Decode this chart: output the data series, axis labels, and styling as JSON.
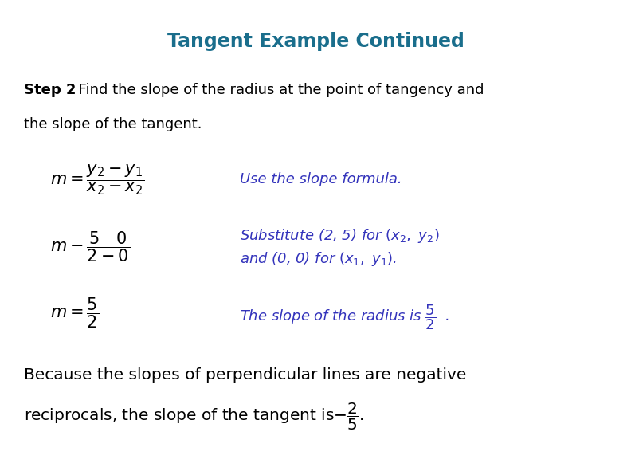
{
  "title": "Tangent Example Continued",
  "title_color": "#1a6e8c",
  "title_fontsize": 17,
  "background_color": "#ffffff",
  "text_color": "#000000",
  "blue_color": "#3333bb",
  "fig_width": 7.92,
  "fig_height": 5.76,
  "dpi": 100
}
